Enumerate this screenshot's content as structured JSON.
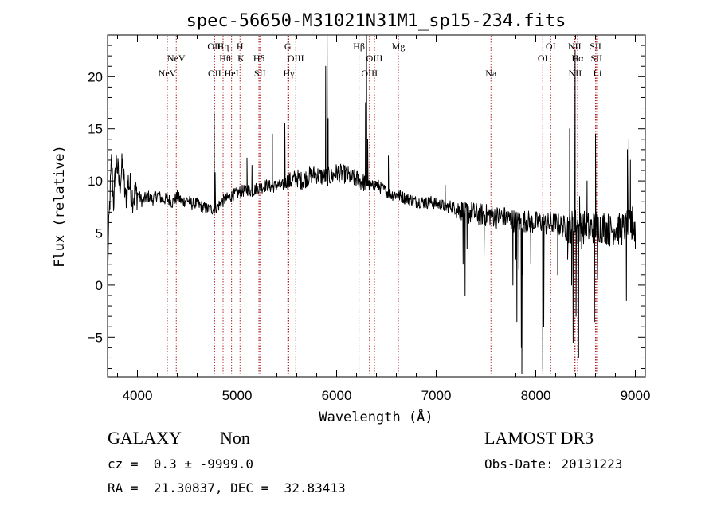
{
  "chart_data": {
    "type": "line",
    "title": "spec-56650-M31021N31M1_sp15-234.fits",
    "xlabel": "Wavelength (Å)",
    "ylabel": "Flux (relative)",
    "xlim": [
      3700,
      9100
    ],
    "ylim": [
      -8.8,
      24
    ],
    "xticks": [
      4000,
      5000,
      6000,
      7000,
      8000,
      9000
    ],
    "yticks": [
      -5,
      0,
      5,
      10,
      15,
      20
    ],
    "ytick_labels": [
      "−5",
      "0",
      "5",
      "10",
      "15",
      "20"
    ],
    "grid": false,
    "line_color": "#000000",
    "marker_color": "#b22222",
    "spectrum_anchors": [
      [
        3700,
        1.5
      ],
      [
        3720,
        7.5
      ],
      [
        3740,
        11.8
      ],
      [
        3760,
        8.0
      ],
      [
        3790,
        12.0
      ],
      [
        3820,
        9.5
      ],
      [
        3850,
        11.5
      ],
      [
        3880,
        8.2
      ],
      [
        3910,
        10.0
      ],
      [
        3950,
        8.5
      ],
      [
        4000,
        8.8
      ],
      [
        4050,
        8.0
      ],
      [
        4100,
        8.6
      ],
      [
        4150,
        8.2
      ],
      [
        4200,
        8.7
      ],
      [
        4250,
        8.2
      ],
      [
        4300,
        8.3
      ],
      [
        4350,
        7.9
      ],
      [
        4400,
        8.5
      ],
      [
        4450,
        8.0
      ],
      [
        4500,
        8.2
      ],
      [
        4550,
        7.8
      ],
      [
        4600,
        7.8
      ],
      [
        4650,
        7.5
      ],
      [
        4700,
        7.3
      ],
      [
        4750,
        7.3
      ],
      [
        4800,
        7.5
      ],
      [
        4850,
        8.0
      ],
      [
        4900,
        8.3
      ],
      [
        4950,
        8.6
      ],
      [
        5000,
        8.8
      ],
      [
        5050,
        9.0
      ],
      [
        5100,
        9.2
      ],
      [
        5150,
        9.0
      ],
      [
        5200,
        9.3
      ],
      [
        5250,
        9.4
      ],
      [
        5300,
        9.6
      ],
      [
        5350,
        9.4
      ],
      [
        5400,
        9.6
      ],
      [
        5450,
        9.5
      ],
      [
        5500,
        9.9
      ],
      [
        5550,
        10.0
      ],
      [
        5600,
        10.3
      ],
      [
        5650,
        10.0
      ],
      [
        5700,
        10.3
      ],
      [
        5750,
        10.6
      ],
      [
        5800,
        10.6
      ],
      [
        5850,
        10.4
      ],
      [
        5950,
        10.4
      ],
      [
        6000,
        10.8
      ],
      [
        6050,
        10.7
      ],
      [
        6100,
        10.6
      ],
      [
        6150,
        10.3
      ],
      [
        6200,
        10.2
      ],
      [
        6250,
        9.9
      ],
      [
        6300,
        9.8
      ],
      [
        6350,
        9.4
      ],
      [
        6400,
        9.7
      ],
      [
        6450,
        9.3
      ],
      [
        6500,
        9.0
      ],
      [
        6550,
        8.7
      ],
      [
        6600,
        8.7
      ],
      [
        6650,
        8.5
      ],
      [
        6700,
        8.3
      ],
      [
        6750,
        8.2
      ],
      [
        6800,
        8.0
      ],
      [
        6850,
        8.0
      ],
      [
        6900,
        7.9
      ],
      [
        6950,
        8.0
      ],
      [
        7000,
        7.8
      ],
      [
        7050,
        7.7
      ],
      [
        7100,
        7.5
      ],
      [
        7150,
        7.6
      ],
      [
        7200,
        7.3
      ],
      [
        7250,
        7.2
      ],
      [
        7300,
        6.8
      ],
      [
        7350,
        7.0
      ],
      [
        7400,
        6.8
      ],
      [
        7450,
        6.8
      ],
      [
        7500,
        6.7
      ],
      [
        7550,
        6.8
      ],
      [
        7600,
        6.5
      ],
      [
        7650,
        6.6
      ],
      [
        7700,
        6.4
      ],
      [
        7750,
        6.3
      ],
      [
        7800,
        6.1
      ],
      [
        7850,
        6.0
      ],
      [
        7900,
        6.2
      ],
      [
        7950,
        6.0
      ],
      [
        8000,
        6.0
      ],
      [
        8050,
        6.1
      ],
      [
        8100,
        5.8
      ],
      [
        8150,
        5.9
      ],
      [
        8200,
        5.9
      ],
      [
        8250,
        5.7
      ],
      [
        8300,
        5.6
      ],
      [
        8350,
        5.6
      ],
      [
        8400,
        5.8
      ],
      [
        8450,
        5.5
      ],
      [
        8500,
        5.6
      ],
      [
        8550,
        5.4
      ],
      [
        8600,
        5.7
      ],
      [
        8650,
        5.6
      ],
      [
        8700,
        5.6
      ],
      [
        8750,
        5.2
      ],
      [
        8800,
        5.6
      ],
      [
        8850,
        5.3
      ],
      [
        8900,
        5.5
      ],
      [
        8950,
        5.7
      ],
      [
        9000,
        5.4
      ]
    ],
    "spectrum_features": [
      [
        3703,
        -4.5
      ],
      [
        4770,
        16.6
      ],
      [
        4780,
        10.8
      ],
      [
        5100,
        12.2
      ],
      [
        5150,
        11.5
      ],
      [
        5355,
        14.5
      ],
      [
        5480,
        15.5
      ],
      [
        5890,
        21.0
      ],
      [
        5905,
        27.0
      ],
      [
        5915,
        16.0
      ],
      [
        6290,
        17.5
      ],
      [
        6300,
        24.5
      ],
      [
        6312,
        14.0
      ],
      [
        6520,
        12.4
      ],
      [
        7090,
        9.6
      ],
      [
        7270,
        2.0
      ],
      [
        7290,
        -1.0
      ],
      [
        7310,
        3.5
      ],
      [
        7480,
        2.5
      ],
      [
        7770,
        0.0
      ],
      [
        7800,
        2.5
      ],
      [
        7810,
        -3.5
      ],
      [
        7830,
        1.5
      ],
      [
        7855,
        -6.0
      ],
      [
        7860,
        -8.5
      ],
      [
        7870,
        1.0
      ],
      [
        7950,
        2.0
      ],
      [
        8070,
        -8.0
      ],
      [
        8080,
        -4.0
      ],
      [
        8220,
        1.0
      ],
      [
        8320,
        2.5
      ],
      [
        8340,
        15.0
      ],
      [
        8360,
        0.0
      ],
      [
        8375,
        -5.5
      ],
      [
        8395,
        22.5
      ],
      [
        8405,
        -3.0
      ],
      [
        8420,
        4.0
      ],
      [
        8430,
        -7.0
      ],
      [
        8440,
        8.5
      ],
      [
        8460,
        3.5
      ],
      [
        8515,
        10.0
      ],
      [
        8590,
        -3.5
      ],
      [
        8600,
        14.5
      ],
      [
        8620,
        0.5
      ],
      [
        8910,
        -1.5
      ],
      [
        8920,
        13.0
      ],
      [
        8935,
        14.0
      ],
      [
        8950,
        12.0
      ],
      [
        8970,
        7.5
      ],
      [
        9000,
        3.5
      ]
    ],
    "line_markers": [
      {
        "wavelength": 4300,
        "label": "NeV",
        "row": 3
      },
      {
        "wavelength": 4390,
        "label": "NeV",
        "row": 2
      },
      {
        "wavelength": 4770,
        "label": "OII",
        "row": 1
      },
      {
        "wavelength": 4775,
        "label": "OII",
        "row": 3
      },
      {
        "wavelength": 4860,
        "label": "Hη",
        "row": 1
      },
      {
        "wavelength": 4880,
        "label": "Hθ",
        "row": 2
      },
      {
        "wavelength": 4945,
        "label": "HeI",
        "row": 3
      },
      {
        "wavelength": 5030,
        "label": "H",
        "row": 1
      },
      {
        "wavelength": 5040,
        "label": "K",
        "row": 2
      },
      {
        "wavelength": 5220,
        "label": "Hδ",
        "row": 2
      },
      {
        "wavelength": 5230,
        "label": "SII",
        "row": 3
      },
      {
        "wavelength": 5510,
        "label": "G",
        "row": 1
      },
      {
        "wavelength": 5520,
        "label": "Hγ",
        "row": 3
      },
      {
        "wavelength": 5590,
        "label": "OIII",
        "row": 2
      },
      {
        "wavelength": 6225,
        "label": "Hβ",
        "row": 1
      },
      {
        "wavelength": 6330,
        "label": "OIII",
        "row": 3
      },
      {
        "wavelength": 6380,
        "label": "OIII",
        "row": 2
      },
      {
        "wavelength": 6620,
        "label": "Mg",
        "row": 1
      },
      {
        "wavelength": 7550,
        "label": "Na",
        "row": 3
      },
      {
        "wavelength": 8070,
        "label": "OI",
        "row": 2
      },
      {
        "wavelength": 8150,
        "label": "OI",
        "row": 1
      },
      {
        "wavelength": 8390,
        "label": "NII",
        "row": 1
      },
      {
        "wavelength": 8395,
        "label": "NII",
        "row": 3
      },
      {
        "wavelength": 8420,
        "label": "Hα",
        "row": 2
      },
      {
        "wavelength": 8600,
        "label": "SII",
        "row": 1
      },
      {
        "wavelength": 8610,
        "label": "SII",
        "row": 2
      },
      {
        "wavelength": 8620,
        "label": "Li",
        "row": 3
      }
    ]
  },
  "info": {
    "object_class": "GALAXY",
    "subclass": "Non",
    "redshift": "cz =  0.3 ± -9999.0",
    "coords": "RA =  21.30837, DEC =  32.83413",
    "survey": "LAMOST DR3",
    "obs_date": "Obs-Date: 20131223"
  }
}
